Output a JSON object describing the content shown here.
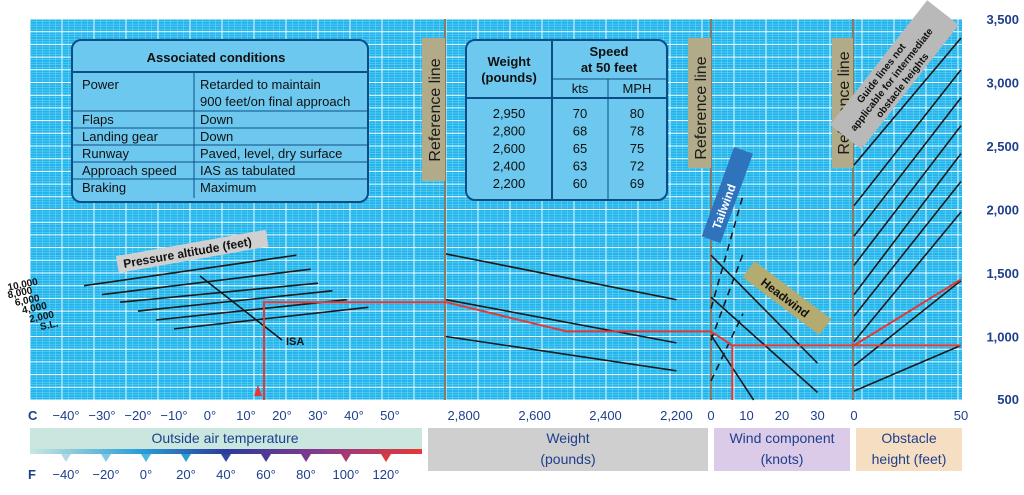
{
  "chart_data": {
    "type": "line",
    "title": "",
    "conditions": {
      "title": "Associated conditions",
      "rows": [
        [
          "Power",
          "Retarded to maintain",
          "900 feet/on final approach"
        ],
        [
          "Flaps",
          "Down",
          ""
        ],
        [
          "Landing gear",
          "Down",
          ""
        ],
        [
          "Runway",
          "Paved, level, dry surface",
          ""
        ],
        [
          "Approach speed",
          "IAS as tabulated",
          ""
        ],
        [
          "Braking",
          "Maximum",
          ""
        ]
      ]
    },
    "speed_table": {
      "weight_header_1": "Weight",
      "weight_header_2": "(pounds)",
      "speed_header_1": "Speed",
      "speed_header_2": "at 50 feet",
      "kts": "kts",
      "mph": "MPH",
      "rows": [
        [
          "2,950",
          "70",
          "80"
        ],
        [
          "2,800",
          "68",
          "78"
        ],
        [
          "2,600",
          "65",
          "75"
        ],
        [
          "2,400",
          "63",
          "72"
        ],
        [
          "2,200",
          "60",
          "69"
        ]
      ]
    },
    "reference_line_label": "Reference line",
    "temperature_panel": {
      "axis_prefix_c": "C",
      "axis_prefix_f": "F",
      "celsius_ticks": [
        "−40°",
        "−30°",
        "−20°",
        "−10°",
        "0°",
        "10°",
        "20°",
        "30°",
        "40°",
        "50°"
      ],
      "fahrenheit_ticks": [
        "−40°",
        "−20°",
        "0°",
        "20°",
        "40°",
        "60°",
        "80°",
        "100°",
        "120°"
      ],
      "label": "Outside air temperature",
      "pressure_altitude_label": "Pressure altitude (feet)",
      "pa_line_labels": [
        "10,000",
        "8,000",
        "6,000",
        "4,000",
        "2,000",
        "S.L."
      ],
      "isa_label": "ISA"
    },
    "weight_panel": {
      "ticks": [
        "2,800",
        "2,600",
        "2,400",
        "2,200"
      ],
      "label_1": "Weight",
      "label_2": "(pounds)"
    },
    "wind_panel": {
      "ticks": [
        "0",
        "10",
        "20",
        "30"
      ],
      "label_1": "Wind component",
      "label_2": "(knots)",
      "tailwind": "Tailwind",
      "headwind": "Headwind"
    },
    "obstacle_panel": {
      "ticks": [
        "0",
        "50"
      ],
      "label_1": "Obstacle",
      "label_2": "height (feet)",
      "note_1": "Guide lines not",
      "note_2": "applicable for intermediate",
      "note_3": "obstacle heights"
    },
    "y_axis": {
      "ticks": [
        "3,500",
        "3,000",
        "2,500",
        "2,000",
        "1,500",
        "1,000",
        "500"
      ],
      "ylim": [
        500,
        3500
      ]
    },
    "example_path": {
      "oat_c": 15,
      "pressure_altitude_ft": 2000,
      "weight_lb": 2750,
      "headwind_kts": 6,
      "obstacle_ft": 50,
      "landing_distance_ft": 1450
    }
  },
  "colors": {
    "grid_bg": "#1fb5ec",
    "grid_major": "#ffffff",
    "grid_minor": "#7fd5f5",
    "line": "#1a1a1a",
    "example_path": "#e53935",
    "table_fill": "#6cc8ef",
    "table_border": "#0b4e86",
    "tick_text": "#1e3f8c",
    "ref_band": "#b2ab8a",
    "tailwind": "#2f73bd",
    "headwind": "#b3ab6f",
    "oat_band": "#c9e6df",
    "weight_band": "#cfcfcf",
    "wind_band": "#dccbe8",
    "obstacle_band": "#f6dec3"
  }
}
